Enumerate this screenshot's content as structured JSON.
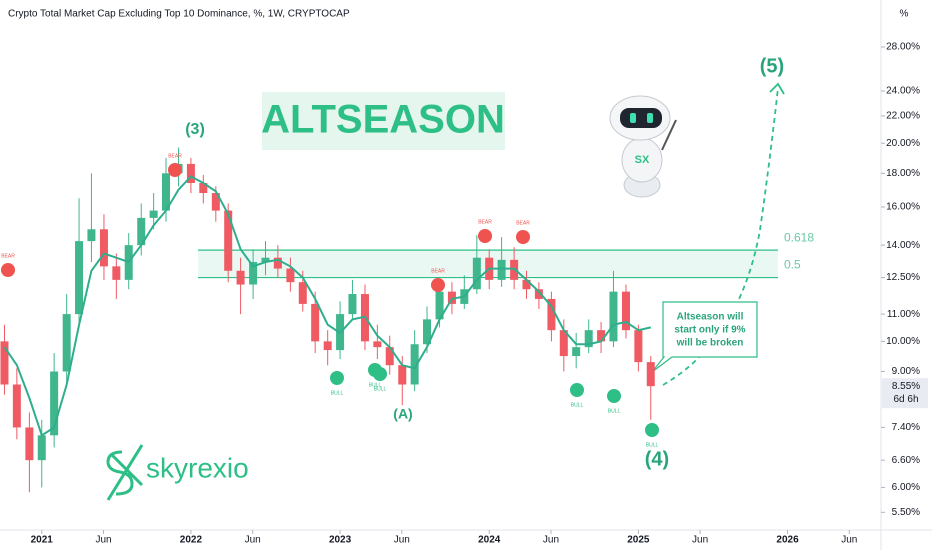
{
  "chart_data": {
    "type": "candlestick",
    "title": "Crypto Total Market Cap Excluding Top 10 Dominance, %, 1W, CRYPTOCAP",
    "axis_unit": "%",
    "headline": "ALTSEASON",
    "brand": "skyrexio",
    "x": [
      2020.75,
      2020.833,
      2020.917,
      2021,
      2021.083,
      2021.167,
      2021.25,
      2021.333,
      2021.417,
      2021.5,
      2021.583,
      2021.667,
      2021.75,
      2021.833,
      2021.917,
      2022,
      2022.083,
      2022.167,
      2022.25,
      2022.333,
      2022.417,
      2022.5,
      2022.583,
      2022.667,
      2022.75,
      2022.833,
      2022.917,
      2023,
      2023.083,
      2023.167,
      2023.25,
      2023.333,
      2023.417,
      2023.5,
      2023.583,
      2023.667,
      2023.75,
      2023.833,
      2023.917,
      2024,
      2024.083,
      2024.167,
      2024.25,
      2024.333,
      2024.417,
      2024.5,
      2024.583,
      2024.667,
      2024.75,
      2024.833,
      2024.917,
      2025,
      2025.083
    ],
    "open": [
      10.0,
      8.6,
      7.4,
      6.6,
      7.2,
      9.0,
      11.0,
      14.2,
      14.8,
      13.0,
      12.4,
      14.0,
      15.4,
      15.8,
      18.0,
      18.6,
      17.4,
      16.8,
      15.8,
      12.8,
      12.2,
      13.2,
      13.4,
      12.9,
      12.3,
      11.4,
      10.0,
      9.7,
      11.0,
      11.8,
      10.0,
      9.8,
      9.2,
      8.6,
      9.9,
      10.8,
      11.9,
      11.4,
      12.0,
      13.4,
      12.4,
      13.3,
      12.4,
      12.0,
      11.6,
      10.4,
      9.5,
      9.8,
      10.4,
      10.0,
      11.9,
      10.4,
      9.3
    ],
    "high": [
      10.6,
      9.1,
      7.8,
      7.6,
      9.6,
      11.8,
      16.5,
      18.0,
      15.6,
      13.6,
      14.6,
      16.2,
      16.8,
      19.0,
      19.7,
      19.0,
      17.9,
      17.2,
      16.2,
      13.4,
      13.8,
      14.2,
      14.0,
      13.4,
      12.8,
      11.9,
      10.4,
      11.5,
      12.4,
      12.2,
      10.6,
      10.2,
      9.5,
      10.4,
      11.3,
      12.4,
      12.3,
      12.6,
      14.5,
      13.8,
      14.4,
      13.9,
      12.8,
      12.3,
      11.9,
      10.8,
      10.3,
      10.8,
      10.7,
      12.8,
      12.2,
      10.6,
      9.5
    ],
    "low": [
      8.3,
      7.1,
      5.9,
      6.0,
      6.9,
      8.6,
      10.5,
      13.2,
      12.4,
      11.6,
      12.0,
      13.5,
      14.8,
      15.2,
      17.2,
      16.8,
      16.2,
      15.2,
      12.3,
      11.0,
      11.6,
      12.6,
      12.5,
      11.9,
      11.1,
      9.6,
      9.2,
      9.4,
      10.8,
      9.7,
      9.4,
      8.9,
      8.0,
      8.4,
      9.6,
      10.5,
      11.0,
      11.2,
      11.8,
      12.0,
      12.1,
      12.0,
      11.6,
      11.2,
      10.0,
      9.0,
      9.1,
      9.6,
      9.6,
      9.8,
      10.1,
      9.0,
      7.6
    ],
    "close": [
      8.6,
      7.4,
      6.6,
      7.2,
      9.0,
      11.0,
      14.2,
      14.8,
      13.0,
      12.4,
      14.0,
      15.4,
      15.8,
      18.0,
      18.6,
      17.4,
      16.8,
      15.8,
      12.8,
      12.2,
      13.2,
      13.4,
      12.9,
      12.3,
      11.4,
      10.0,
      9.7,
      11.0,
      11.8,
      10.0,
      9.8,
      9.2,
      8.6,
      9.9,
      10.8,
      11.9,
      11.4,
      12.0,
      13.4,
      12.4,
      13.3,
      12.4,
      12.0,
      11.6,
      10.4,
      9.5,
      9.8,
      10.4,
      10.0,
      11.9,
      10.4,
      9.3,
      8.55
    ],
    "last_label": "8.55%",
    "countdown": "6d 6h",
    "up_color": "#3fb68b",
    "down_color": "#ef5a63",
    "ma": {
      "color": "#2fae8e",
      "values": [
        9.8,
        9.2,
        8.2,
        7.2,
        7.4,
        8.6,
        10.6,
        12.8,
        13.6,
        13.4,
        13.2,
        14.0,
        15.0,
        15.8,
        17.0,
        17.8,
        17.4,
        16.9,
        15.6,
        13.8,
        13.0,
        13.2,
        13.3,
        13.0,
        12.5,
        11.6,
        10.6,
        10.3,
        10.8,
        10.9,
        10.2,
        9.8,
        9.2,
        9.1,
        9.8,
        10.8,
        11.6,
        11.7,
        12.4,
        12.9,
        12.9,
        12.9,
        12.4,
        11.9,
        11.3,
        10.4,
        9.9,
        9.9,
        10.0,
        10.6,
        10.7,
        10.4,
        10.5
      ]
    },
    "fib": [
      {
        "label": "0.618",
        "value": 13.76
      },
      {
        "label": "0.5",
        "value": 12.5
      }
    ],
    "waves": [
      "(3)",
      "(A)",
      "(4)",
      "(5)"
    ],
    "signals": [
      "BEAR",
      "BEAR",
      "BEAR",
      "BEAR",
      "BEAR",
      "BULL",
      "BULL",
      "BULL",
      "BULL",
      "BULL",
      "BULL"
    ],
    "callout": [
      "Altseason will",
      "start only if 9%",
      "will be broken"
    ],
    "log": true,
    "grid": false,
    "ylim": [
      5.17,
      33
    ],
    "yticks": [
      {
        "value": 28,
        "label": "28.00%"
      },
      {
        "value": 24,
        "label": "24.00%"
      },
      {
        "value": 22,
        "label": "22.00%"
      },
      {
        "value": 20,
        "label": "20.00%"
      },
      {
        "value": 18,
        "label": "18.00%"
      },
      {
        "value": 16,
        "label": "16.00%"
      },
      {
        "value": 14,
        "label": "14.00%"
      },
      {
        "value": 12.5,
        "label": "12.50%"
      },
      {
        "value": 11,
        "label": "11.00%"
      },
      {
        "value": 10,
        "label": "10.00%"
      },
      {
        "value": 9,
        "label": "9.00%"
      },
      {
        "value": 7.4,
        "label": "7.40%"
      },
      {
        "value": 6.6,
        "label": "6.60%"
      },
      {
        "value": 6,
        "label": "6.00%"
      },
      {
        "value": 5.5,
        "label": "5.50%"
      }
    ],
    "xlim": [
      2020.72,
      2026.62
    ],
    "xticks": [
      {
        "value": 2021,
        "label": "2021"
      },
      {
        "value": 2021.414,
        "label": "Jun"
      },
      {
        "value": 2022,
        "label": "2022"
      },
      {
        "value": 2022.414,
        "label": "Jun"
      },
      {
        "value": 2023,
        "label": "2023"
      },
      {
        "value": 2023.414,
        "label": "Jun"
      },
      {
        "value": 2024,
        "label": "2024"
      },
      {
        "value": 2024.414,
        "label": "Jun"
      },
      {
        "value": 2025,
        "label": "2025"
      },
      {
        "value": 2025.414,
        "label": "Jun"
      },
      {
        "value": 2026,
        "label": "2026"
      },
      {
        "value": 2026.414,
        "label": "Jun"
      }
    ]
  }
}
